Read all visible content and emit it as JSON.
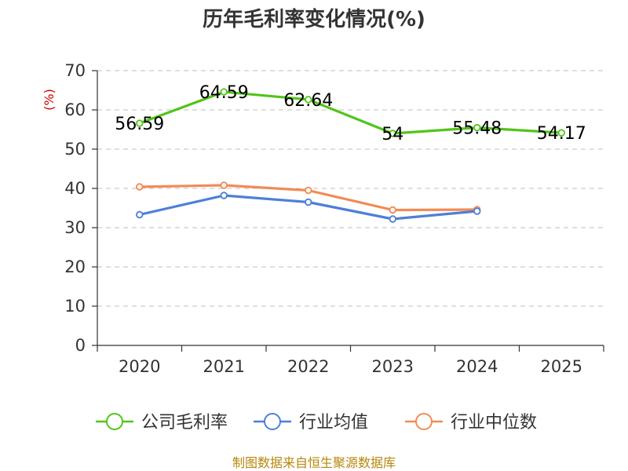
{
  "chart_data": {
    "type": "line",
    "title": "历年毛利率变化情况(%)",
    "ylabel": "(%)",
    "xlabel": "",
    "categories": [
      "2020",
      "2021",
      "2022",
      "2023",
      "2024",
      "2025"
    ],
    "ylim": [
      0,
      70
    ],
    "yticks": [
      0,
      10,
      20,
      30,
      40,
      50,
      60,
      70
    ],
    "grid": true,
    "legend": "bottom",
    "series": [
      {
        "name": "公司毛利率",
        "color": "#52c41a",
        "values": [
          56.59,
          64.59,
          62.64,
          54,
          55.48,
          54.17
        ],
        "labels": [
          "56.59",
          "64.59",
          "62.64",
          "54",
          "55.48",
          "54.17"
        ]
      },
      {
        "name": "行业均值",
        "color": "#4e7fd8",
        "values": [
          33.3,
          38.2,
          36.5,
          32.2,
          34.2,
          null
        ]
      },
      {
        "name": "行业中位数",
        "color": "#f28b55",
        "values": [
          40.4,
          40.8,
          39.5,
          34.5,
          34.6,
          null
        ]
      }
    ]
  },
  "source": "制图数据来自恒生聚源数据库"
}
